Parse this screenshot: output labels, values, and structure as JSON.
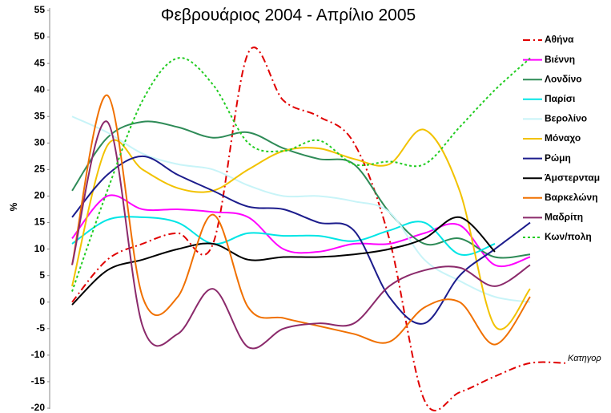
{
  "chart_data": {
    "type": "line",
    "title": "Φεβρουάριος 2004 - Απρίλιο 2005",
    "y_label": "%",
    "x_label": "Κατηγορ",
    "categories": [
      null,
      null,
      null,
      null,
      null,
      null,
      null,
      null,
      null,
      null,
      null,
      null,
      null,
      null,
      null
    ],
    "ylim": [
      -20,
      55
    ],
    "yticks": [
      -20,
      -15,
      -10,
      -5,
      0,
      5,
      10,
      15,
      20,
      25,
      30,
      35,
      40,
      45,
      50,
      55
    ],
    "series": [
      {
        "name": "Αθήνα",
        "color": "#e00000",
        "dash": "9,4,2,4",
        "values": [
          0,
          8,
          11,
          13,
          11,
          47,
          38,
          35,
          30,
          12,
          -18.5,
          -17,
          -14,
          -11.5,
          -11.5
        ]
      },
      {
        "name": "Βιέννη",
        "color": "#ff00ff",
        "values": [
          12,
          20,
          17.5,
          17.5,
          17,
          16,
          10,
          9.5,
          11,
          11,
          13,
          14.5,
          7,
          8.5,
          null
        ]
      },
      {
        "name": "Λονδίνο",
        "color": "#2e8b57",
        "values": [
          21,
          31,
          34,
          33,
          31,
          32,
          29,
          27,
          26,
          17,
          11,
          12,
          8.5,
          9,
          null
        ]
      },
      {
        "name": "Παρίσι",
        "color": "#00e5e5",
        "values": [
          11,
          15.5,
          16,
          15,
          11,
          13,
          12.5,
          12.5,
          11.5,
          13.5,
          15,
          9,
          11,
          null,
          null
        ]
      },
      {
        "name": "Βερολίνο",
        "color": "#c8f4f8",
        "values": [
          35,
          32,
          28,
          26,
          25,
          22,
          20,
          20,
          19,
          17,
          8,
          4,
          1,
          0,
          null
        ]
      },
      {
        "name": "Μόναχο",
        "color": "#f2c200",
        "values": [
          3,
          29.5,
          25,
          21.5,
          21,
          25,
          28.5,
          29,
          27,
          26,
          32.5,
          21,
          -4.5,
          2.5,
          null
        ]
      },
      {
        "name": "Ρώμη",
        "color": "#1c1c8c",
        "values": [
          16,
          24,
          27.5,
          24,
          21,
          18,
          17.5,
          15,
          13.5,
          1,
          -4,
          5,
          10,
          15,
          null
        ]
      },
      {
        "name": "Άμστερνταμ",
        "color": "#000000",
        "values": [
          -0.5,
          6,
          8,
          10,
          11,
          8,
          8.5,
          8.5,
          9,
          10,
          12,
          16,
          9.5,
          null,
          null
        ]
      },
      {
        "name": "Βαρκελώνη",
        "color": "#f07000",
        "values": [
          7,
          39,
          1,
          1,
          16.5,
          -1,
          -3,
          -4.5,
          -6,
          -7.5,
          -1,
          0,
          -8,
          1,
          null
        ]
      },
      {
        "name": "Μαδρίτη",
        "color": "#8b2a6b",
        "values": [
          7,
          34,
          -4.5,
          -6,
          2.5,
          -8.5,
          -5,
          -4,
          -4,
          3,
          6,
          6.5,
          3,
          7,
          null
        ]
      },
      {
        "name": "Κων/πολη",
        "color": "#22cc22",
        "dash": "3,3",
        "values": [
          2,
          21,
          38,
          46,
          41,
          30,
          28.5,
          30.5,
          26,
          26.5,
          26,
          33,
          40,
          46,
          null
        ]
      }
    ]
  }
}
